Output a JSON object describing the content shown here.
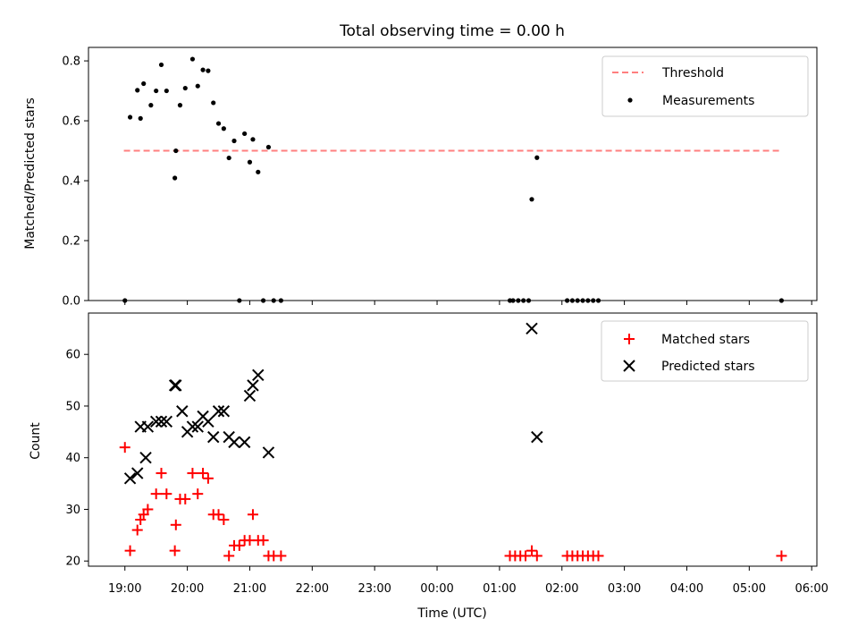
{
  "chart_data": [
    {
      "type": "scatter",
      "title": "Total observing time = 0.00 h",
      "xlabel": "",
      "ylabel": "Matched/Predicted stars",
      "ylim": [
        0,
        0.845
      ],
      "y_ticks": [
        "0.0",
        "0.2",
        "0.4",
        "0.6",
        "0.8"
      ],
      "y_tick_values": [
        0,
        0.2,
        0.4,
        0.6,
        0.8
      ],
      "legend_position": "top-right",
      "threshold": {
        "name": "Threshold",
        "value": 0.5,
        "x_range": [
          "18:59",
          "05:32"
        ],
        "color": "#ff7f7f",
        "style": "dashed"
      },
      "series": [
        {
          "name": "Measurements",
          "color": "#000000",
          "marker": "dot",
          "points": [
            [
              "19:00",
              0.0
            ],
            [
              "19:05",
              0.612
            ],
            [
              "19:12",
              0.702
            ],
            [
              "19:15",
              0.608
            ],
            [
              "19:18",
              0.724
            ],
            [
              "19:25",
              0.652
            ],
            [
              "19:30",
              0.7
            ],
            [
              "19:35",
              0.787
            ],
            [
              "19:40",
              0.7
            ],
            [
              "19:48",
              0.409
            ],
            [
              "19:49",
              0.5
            ],
            [
              "19:53",
              0.652
            ],
            [
              "19:58",
              0.709
            ],
            [
              "20:05",
              0.806
            ],
            [
              "20:10",
              0.716
            ],
            [
              "20:15",
              0.77
            ],
            [
              "20:20",
              0.767
            ],
            [
              "20:25",
              0.66
            ],
            [
              "20:30",
              0.591
            ],
            [
              "20:35",
              0.574
            ],
            [
              "20:40",
              0.476
            ],
            [
              "20:45",
              0.533
            ],
            [
              "20:50",
              0.0
            ],
            [
              "20:55",
              0.557
            ],
            [
              "21:00",
              0.462
            ],
            [
              "21:03",
              0.538
            ],
            [
              "21:08",
              0.429
            ],
            [
              "21:13",
              0.0
            ],
            [
              "21:18",
              0.512
            ],
            [
              "21:23",
              0.0
            ],
            [
              "21:30",
              0.0
            ],
            [
              "01:10",
              0.0
            ],
            [
              "01:13",
              0.0
            ],
            [
              "01:18",
              0.0
            ],
            [
              "01:23",
              0.0
            ],
            [
              "01:28",
              0.0
            ],
            [
              "01:31",
              0.338
            ],
            [
              "01:36",
              0.477
            ],
            [
              "02:05",
              0.0
            ],
            [
              "02:10",
              0.0
            ],
            [
              "02:15",
              0.0
            ],
            [
              "02:20",
              0.0
            ],
            [
              "02:25",
              0.0
            ],
            [
              "02:30",
              0.0
            ],
            [
              "02:35",
              0.0
            ],
            [
              "05:31",
              0.0
            ]
          ]
        }
      ]
    },
    {
      "type": "scatter",
      "title": "",
      "xlabel": "Time (UTC)",
      "ylabel": "Count",
      "ylim": [
        19,
        68
      ],
      "y_ticks": [
        "20",
        "30",
        "40",
        "50",
        "60"
      ],
      "y_tick_values": [
        20,
        30,
        40,
        50,
        60
      ],
      "x_ticks": [
        "19:00",
        "20:00",
        "21:00",
        "22:00",
        "23:00",
        "00:00",
        "01:00",
        "02:00",
        "03:00",
        "04:00",
        "05:00",
        "06:00"
      ],
      "x_range": [
        "18:25",
        "06:05"
      ],
      "legend_position": "top-right",
      "series": [
        {
          "name": "Matched stars",
          "color": "#ff0000",
          "marker": "plus",
          "points": [
            [
              "19:00",
              42
            ],
            [
              "19:05",
              22
            ],
            [
              "19:12",
              26
            ],
            [
              "19:15",
              28
            ],
            [
              "19:18",
              29
            ],
            [
              "19:22",
              30
            ],
            [
              "19:30",
              33
            ],
            [
              "19:35",
              37
            ],
            [
              "19:40",
              33
            ],
            [
              "19:48",
              22
            ],
            [
              "19:49",
              27
            ],
            [
              "19:53",
              32
            ],
            [
              "19:58",
              32
            ],
            [
              "20:05",
              37
            ],
            [
              "20:10",
              33
            ],
            [
              "20:15",
              37
            ],
            [
              "20:20",
              36
            ],
            [
              "20:25",
              29
            ],
            [
              "20:30",
              29
            ],
            [
              "20:35",
              28
            ],
            [
              "20:40",
              21
            ],
            [
              "20:45",
              23
            ],
            [
              "20:50",
              23
            ],
            [
              "20:55",
              24
            ],
            [
              "21:00",
              24
            ],
            [
              "21:03",
              29
            ],
            [
              "21:08",
              24
            ],
            [
              "21:13",
              24
            ],
            [
              "21:18",
              21
            ],
            [
              "21:23",
              21
            ],
            [
              "21:30",
              21
            ],
            [
              "01:10",
              21
            ],
            [
              "01:15",
              21
            ],
            [
              "01:20",
              21
            ],
            [
              "01:25",
              21
            ],
            [
              "01:31",
              22
            ],
            [
              "01:36",
              21
            ],
            [
              "02:05",
              21
            ],
            [
              "02:10",
              21
            ],
            [
              "02:15",
              21
            ],
            [
              "02:20",
              21
            ],
            [
              "02:25",
              21
            ],
            [
              "02:30",
              21
            ],
            [
              "02:35",
              21
            ],
            [
              "05:31",
              21
            ]
          ]
        },
        {
          "name": "Predicted stars",
          "color": "#000000",
          "marker": "x",
          "points": [
            [
              "19:05",
              36
            ],
            [
              "19:12",
              37
            ],
            [
              "19:15",
              46
            ],
            [
              "19:20",
              40
            ],
            [
              "19:22",
              46
            ],
            [
              "19:30",
              47
            ],
            [
              "19:35",
              47
            ],
            [
              "19:40",
              47
            ],
            [
              "19:48",
              54
            ],
            [
              "19:49",
              54
            ],
            [
              "19:55",
              49
            ],
            [
              "20:00",
              45
            ],
            [
              "20:05",
              46
            ],
            [
              "20:10",
              46
            ],
            [
              "20:15",
              48
            ],
            [
              "20:20",
              47
            ],
            [
              "20:25",
              44
            ],
            [
              "20:30",
              49
            ],
            [
              "20:35",
              49
            ],
            [
              "20:40",
              44
            ],
            [
              "20:45",
              43
            ],
            [
              "20:55",
              43
            ],
            [
              "21:00",
              52
            ],
            [
              "21:03",
              54
            ],
            [
              "21:08",
              56
            ],
            [
              "21:18",
              41
            ],
            [
              "01:31",
              65
            ],
            [
              "01:36",
              44
            ]
          ]
        }
      ]
    }
  ]
}
